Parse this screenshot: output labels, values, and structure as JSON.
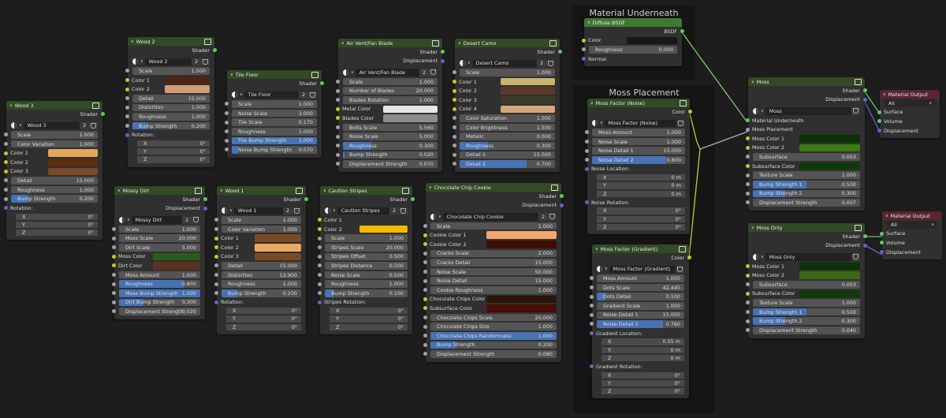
{
  "frames": [
    {
      "id": "f1",
      "title": "Material Underneath"
    },
    {
      "id": "f2",
      "title": "Moss Placement"
    }
  ],
  "colors": {
    "float": "#a1a1a1",
    "color": "#c7c729",
    "vector": "#6363c7",
    "shader": "#63c763"
  },
  "nodes": [
    {
      "id": "wood3",
      "title": "Wood 3",
      "outputs": [
        {
          "l": "Shader",
          "k": "shader"
        }
      ],
      "db": {
        "name": "Wood 3",
        "users": "2"
      },
      "rows": [
        {
          "t": "f",
          "l": "Scale",
          "v": "1.000"
        },
        {
          "t": "f",
          "l": "Color Variation",
          "v": "1.000"
        },
        {
          "t": "c",
          "l": "Color 1",
          "c": "#e3a65e"
        },
        {
          "t": "c",
          "l": "Color 2",
          "c": "#5a2e12"
        },
        {
          "t": "c",
          "l": "Color 3",
          "c": "#7c4a28"
        },
        {
          "t": "f",
          "l": "Detail",
          "v": "15.000"
        },
        {
          "t": "f",
          "l": "Roughness",
          "v": "1.000"
        },
        {
          "t": "f",
          "l": "Bump Strength",
          "v": "0.200",
          "p": 0.2
        },
        {
          "t": "s",
          "l": "Rotation:"
        },
        {
          "t": "v",
          "l": "X",
          "v": "0°"
        },
        {
          "t": "v",
          "l": "Y",
          "v": "0°"
        },
        {
          "t": "v",
          "l": "Z",
          "v": "0°"
        }
      ]
    },
    {
      "id": "wood2",
      "title": "Wood 2",
      "outputs": [
        {
          "l": "Shader",
          "k": "shader"
        }
      ],
      "db": {
        "name": "Wood 2",
        "users": "2"
      },
      "rows": [
        {
          "t": "f",
          "l": "Scale",
          "v": "1.000"
        },
        {
          "t": "c",
          "l": "Color 1",
          "c": "#4e2414"
        },
        {
          "t": "c",
          "l": "Color 2",
          "c": "#d39a78"
        },
        {
          "t": "f",
          "l": "Detail",
          "v": "15.000"
        },
        {
          "t": "f",
          "l": "Distortion",
          "v": "1.000"
        },
        {
          "t": "f",
          "l": "Roughness",
          "v": "1.000"
        },
        {
          "t": "f",
          "l": "Bump Strength",
          "v": "0.200",
          "p": 0.2
        },
        {
          "t": "s",
          "l": "Rotation:"
        },
        {
          "t": "v",
          "l": "X",
          "v": "0°"
        },
        {
          "t": "v",
          "l": "Y",
          "v": "0°"
        },
        {
          "t": "v",
          "l": "Z",
          "v": "0°"
        }
      ]
    },
    {
      "id": "tile",
      "title": "Tile Floor",
      "outputs": [
        {
          "l": "Shader",
          "k": "shader"
        }
      ],
      "db": {
        "name": "Tile Floor",
        "users": "2"
      },
      "rows": [
        {
          "t": "f",
          "l": "Scale",
          "v": "1.000"
        },
        {
          "t": "f",
          "l": "Noise Scale",
          "v": "3.000"
        },
        {
          "t": "f",
          "l": "Tile Scale",
          "v": "0.170"
        },
        {
          "t": "f",
          "l": "Roughness",
          "v": "1.000"
        },
        {
          "t": "f",
          "l": "Tile Bump Strength",
          "v": "1.000",
          "p": 1
        },
        {
          "t": "f",
          "l": "Noise Bump Strength",
          "v": "0.070",
          "p": 0.07
        }
      ]
    },
    {
      "id": "airvent",
      "title": "Air Vent/Fan Blade",
      "outputs": [
        {
          "l": "Shader",
          "k": "shader"
        },
        {
          "l": "Displacement",
          "k": "vector"
        }
      ],
      "db": {
        "name": "Air Vent/Fan Blade",
        "users": "2"
      },
      "rows": [
        {
          "t": "f",
          "l": "Scale",
          "v": "1.000"
        },
        {
          "t": "f",
          "l": "Number of Blades",
          "v": "20.000"
        },
        {
          "t": "f",
          "l": "Blades Rotation",
          "v": "1.000"
        },
        {
          "t": "c",
          "l": "Metal Color",
          "c": "#e6e6e6"
        },
        {
          "t": "c",
          "l": "Blades Color",
          "c": "#8c8c8c"
        },
        {
          "t": "f",
          "l": "Bolts Scale",
          "v": "5.560"
        },
        {
          "t": "f",
          "l": "Noise Scale",
          "v": "5.000"
        },
        {
          "t": "f",
          "l": "Roughness",
          "v": "0.300",
          "p": 0.3
        },
        {
          "t": "f",
          "l": "Bump Strength",
          "v": "0.020",
          "p": 0.02
        },
        {
          "t": "f",
          "l": "Displacement Strength",
          "v": "0.070"
        }
      ]
    },
    {
      "id": "camo",
      "title": "Desert Camo",
      "outputs": [
        {
          "l": "Shader",
          "k": "shader"
        }
      ],
      "db": {
        "name": "Desert Camo",
        "users": "2"
      },
      "rows": [
        {
          "t": "f",
          "l": "Scale",
          "v": "1.000"
        },
        {
          "t": "c",
          "l": "Color 1",
          "c": "#c9b46e"
        },
        {
          "t": "c",
          "l": "Color 2",
          "c": "#5a3a2c"
        },
        {
          "t": "c",
          "l": "Color 3",
          "c": "#3c3a28"
        },
        {
          "t": "c",
          "l": "Color 4",
          "c": "#d3a678"
        },
        {
          "t": "f",
          "l": "Color Saturation",
          "v": "1.000"
        },
        {
          "t": "f",
          "l": "Color Brightness",
          "v": "1.500"
        },
        {
          "t": "f",
          "l": "Metalic",
          "v": "0.000"
        },
        {
          "t": "f",
          "l": "Roughness",
          "v": "0.300",
          "p": 0.3
        },
        {
          "t": "f",
          "l": "Detail 1",
          "v": "15.000"
        },
        {
          "t": "f",
          "l": "Detail 2",
          "v": "0.700",
          "p": 0.7
        }
      ]
    },
    {
      "id": "mossydirt",
      "title": "Mossy Dirt",
      "outputs": [
        {
          "l": "Shader",
          "k": "shader"
        },
        {
          "l": "Displacement",
          "k": "vector"
        }
      ],
      "db": {
        "name": "Mossy Dirt",
        "users": "2"
      },
      "rows": [
        {
          "t": "f",
          "l": "Scale",
          "v": "1.000"
        },
        {
          "t": "f",
          "l": "Moss Scale",
          "v": "20.000"
        },
        {
          "t": "f",
          "l": "Dirt Scale",
          "v": "5.000"
        },
        {
          "t": "c",
          "l": "Moss Color",
          "c": "#2d5a1e"
        },
        {
          "t": "c",
          "l": "Dirt Color",
          "c": "#5a3222"
        },
        {
          "t": "f",
          "l": "Moss Amount",
          "v": "1.000"
        },
        {
          "t": "f",
          "l": "Roughness",
          "v": "0.800",
          "p": 0.8
        },
        {
          "t": "f",
          "l": "Moss Bump Strength",
          "v": "1.000",
          "p": 1
        },
        {
          "t": "f",
          "l": "Dirt Bump Strength",
          "v": "0.300",
          "p": 0.3
        },
        {
          "t": "f",
          "l": "Displacement Strength",
          "v": "0.020"
        }
      ]
    },
    {
      "id": "wood1",
      "title": "Wood 1",
      "outputs": [
        {
          "l": "Shader",
          "k": "shader"
        }
      ],
      "db": {
        "name": "Wood 1",
        "users": "2"
      },
      "rows": [
        {
          "t": "f",
          "l": "Scale",
          "v": "1.000"
        },
        {
          "t": "f",
          "l": "Color Variation",
          "v": "1.000"
        },
        {
          "t": "c",
          "l": "Color 1",
          "c": "#7a4a26"
        },
        {
          "t": "c",
          "l": "Color 2",
          "c": "#eca860"
        },
        {
          "t": "c",
          "l": "Color 3",
          "c": "#7a4a26"
        },
        {
          "t": "f",
          "l": "Detail",
          "v": "15.000"
        },
        {
          "t": "f",
          "l": "Distortion",
          "v": "12.900"
        },
        {
          "t": "f",
          "l": "Roughness",
          "v": "1.000"
        },
        {
          "t": "f",
          "l": "Bump Strength",
          "v": "0.200",
          "p": 0.2
        },
        {
          "t": "s",
          "l": "Rotation:"
        },
        {
          "t": "v",
          "l": "X",
          "v": "0°"
        },
        {
          "t": "v",
          "l": "Y",
          "v": "0°"
        },
        {
          "t": "v",
          "l": "Z",
          "v": "0°"
        }
      ]
    },
    {
      "id": "caution",
      "title": "Caution Stripes",
      "outputs": [
        {
          "l": "Shader",
          "k": "shader"
        }
      ],
      "db": {
        "name": "Caution Stripes",
        "users": "2"
      },
      "rows": [
        {
          "t": "i",
          "l": "Color 1",
          "k": "color"
        },
        {
          "t": "c",
          "l": "Color 2",
          "c": "#f5b800"
        },
        {
          "t": "f",
          "l": "Scale",
          "v": "1.000"
        },
        {
          "t": "f",
          "l": "Stripes Scale",
          "v": "20.000"
        },
        {
          "t": "f",
          "l": "Stripes Offset",
          "v": "0.500"
        },
        {
          "t": "f",
          "l": "Stripes Distance",
          "v": "0.500"
        },
        {
          "t": "f",
          "l": "Noise Scale",
          "v": "0.500"
        },
        {
          "t": "f",
          "l": "Roughness",
          "v": "1.000"
        },
        {
          "t": "f",
          "l": "Bump Strength",
          "v": "0.100",
          "p": 0.1
        },
        {
          "t": "s",
          "l": "Stripes Rotation:"
        },
        {
          "t": "v",
          "l": "X",
          "v": "0°"
        },
        {
          "t": "v",
          "l": "Y",
          "v": "0°"
        },
        {
          "t": "v",
          "l": "Z",
          "v": "0°"
        }
      ]
    },
    {
      "id": "cookie",
      "title": "Chocolate Chip Cookie",
      "outputs": [
        {
          "l": "Shader",
          "k": "shader"
        },
        {
          "l": "Displacement",
          "k": "vector"
        }
      ],
      "db": {
        "name": "Chocolate Chip Cookie",
        "users": "2"
      },
      "rows": [
        {
          "t": "f",
          "l": "Scale",
          "v": "1.000"
        },
        {
          "t": "c",
          "l": "Cookie Color 1",
          "c": "#f5a66e"
        },
        {
          "t": "c",
          "l": "Cookie Color 2",
          "c": "#3c0e04"
        },
        {
          "t": "f",
          "l": "Cracks Scale",
          "v": "2.000"
        },
        {
          "t": "f",
          "l": "Cracks Detail",
          "v": "15.000"
        },
        {
          "t": "f",
          "l": "Noise Scale",
          "v": "50.000"
        },
        {
          "t": "f",
          "l": "Noise Detail",
          "v": "15.000"
        },
        {
          "t": "f",
          "l": "Cookie Roughness",
          "v": "1.000"
        },
        {
          "t": "c",
          "l": "Chocolate Chips Color",
          "c": "#2e1406"
        },
        {
          "t": "c",
          "l": "Subsurface Color",
          "c": "#4a0e08"
        },
        {
          "t": "f",
          "l": "Chocolate Chips Scale",
          "v": "20.000"
        },
        {
          "t": "f",
          "l": "Chocolate Chips Size",
          "v": "1.000"
        },
        {
          "t": "f",
          "l": "Chocolate Chips Randomness",
          "v": "1.000",
          "p": 1
        },
        {
          "t": "f",
          "l": "Bump Strength",
          "v": "0.200",
          "p": 0.2
        },
        {
          "t": "f",
          "l": "Displacement Strength",
          "v": "0.080"
        }
      ]
    },
    {
      "id": "diffuse",
      "title": "Diffuse BSDF",
      "kind": "bsdf",
      "outputs": [
        {
          "l": "BSDF",
          "k": "shader"
        }
      ],
      "rows": [
        {
          "t": "c",
          "l": "Color",
          "c": "#181818"
        },
        {
          "t": "f",
          "l": "Roughness",
          "v": "0.000"
        },
        {
          "t": "i",
          "l": "Normal",
          "k": "vector"
        }
      ]
    },
    {
      "id": "noise",
      "title": "Moss Factor (Noise)",
      "outputs": [
        {
          "l": "Color",
          "k": "color"
        }
      ],
      "db": {
        "name": "Moss Factor (Noise)"
      },
      "rows": [
        {
          "t": "f",
          "l": "Moss Amount",
          "v": "1.000"
        },
        {
          "t": "f",
          "l": "Noise Scale",
          "v": "1.000"
        },
        {
          "t": "f",
          "l": "Noise Detail 1",
          "v": "15.000"
        },
        {
          "t": "f",
          "l": "Noise Detail 2",
          "v": "0.800",
          "p": 0.8
        },
        {
          "t": "s",
          "l": "Noise Location:"
        },
        {
          "t": "v",
          "l": "X",
          "v": "0 m"
        },
        {
          "t": "v",
          "l": "Y",
          "v": "0 m"
        },
        {
          "t": "v",
          "l": "Z",
          "v": "0 m"
        },
        {
          "t": "s",
          "l": "Noise Rotation:"
        },
        {
          "t": "v",
          "l": "X",
          "v": "0°"
        },
        {
          "t": "v",
          "l": "Y",
          "v": "0°"
        },
        {
          "t": "v",
          "l": "Z",
          "v": "0°"
        }
      ]
    },
    {
      "id": "gradient",
      "title": "Moss Factor (Gradient)",
      "outputs": [
        {
          "l": "Color",
          "k": "color"
        }
      ],
      "db": {
        "name": "Moss Factor (Gradient)"
      },
      "rows": [
        {
          "t": "f",
          "l": "Moss Amount",
          "v": "1.000"
        },
        {
          "t": "f",
          "l": "Dots Scale",
          "v": "42.440"
        },
        {
          "t": "f",
          "l": "Dots Detail",
          "v": "0.100",
          "p": 0.1
        },
        {
          "t": "f",
          "l": "Gradient Scale",
          "v": "1.000"
        },
        {
          "t": "f",
          "l": "Noise Detail 1",
          "v": "15.000"
        },
        {
          "t": "f",
          "l": "Noise Detail 2",
          "v": "0.760",
          "p": 0.76
        },
        {
          "t": "s",
          "l": "Gradient Location:"
        },
        {
          "t": "v",
          "l": "X",
          "v": "0.55 m"
        },
        {
          "t": "v",
          "l": "Y",
          "v": "0 m"
        },
        {
          "t": "v",
          "l": "Z",
          "v": "0 m"
        },
        {
          "t": "s",
          "l": "Gradient Rotation:"
        },
        {
          "t": "v",
          "l": "X",
          "v": "0°"
        },
        {
          "t": "v",
          "l": "Y",
          "v": "0°"
        },
        {
          "t": "v",
          "l": "Z",
          "v": "0°"
        }
      ]
    },
    {
      "id": "moss",
      "title": "Moss",
      "outputs": [
        {
          "l": "Shader",
          "k": "shader"
        },
        {
          "l": "Displacement",
          "k": "vector"
        }
      ],
      "db": {
        "name": "Moss"
      },
      "rows": [
        {
          "t": "i",
          "l": "Material Underneath",
          "k": "shader"
        },
        {
          "t": "i",
          "l": "Moss Placement",
          "k": "float"
        },
        {
          "t": "c",
          "l": "Moss Color 1",
          "c": "#0a3204"
        },
        {
          "t": "c",
          "l": "Moss Color 2",
          "c": "#3c7a14"
        },
        {
          "t": "f",
          "l": "Subsurface",
          "v": "0.003"
        },
        {
          "t": "c",
          "l": "Subsurface Color",
          "c": "#0e3a06"
        },
        {
          "t": "f",
          "l": "Texture Scale",
          "v": "1.000"
        },
        {
          "t": "f",
          "l": "Bump Strength 1",
          "v": "0.500",
          "p": 0.5
        },
        {
          "t": "f",
          "l": "Bump Strength 2",
          "v": "0.300",
          "p": 0.3
        },
        {
          "t": "f",
          "l": "Displacement Strength",
          "v": "0.007"
        }
      ]
    },
    {
      "id": "out1",
      "title": "Material Output",
      "kind": "out",
      "select": "All",
      "rows": [
        {
          "t": "i",
          "l": "Surface",
          "k": "shader"
        },
        {
          "t": "i",
          "l": "Volume",
          "k": "shader"
        },
        {
          "t": "i",
          "l": "Displacement",
          "k": "vector"
        }
      ]
    },
    {
      "id": "mossonly",
      "title": "Moss Only",
      "outputs": [
        {
          "l": "Shader",
          "k": "shader"
        },
        {
          "l": "Displacement",
          "k": "vector"
        }
      ],
      "db": {
        "name": "Moss Only"
      },
      "rows": [
        {
          "t": "c",
          "l": "Moss Color 1",
          "c": "#0a3204"
        },
        {
          "t": "c",
          "l": "Moss Color 2",
          "c": "#3c6a14"
        },
        {
          "t": "f",
          "l": "Subsurface",
          "v": "0.003"
        },
        {
          "t": "c",
          "l": "Subsurface Color",
          "c": "#0e3a06"
        },
        {
          "t": "f",
          "l": "Texture Scale",
          "v": "1.000"
        },
        {
          "t": "f",
          "l": "Bump Strength 1",
          "v": "0.500",
          "p": 0.5
        },
        {
          "t": "f",
          "l": "Bump Strength 2",
          "v": "0.300",
          "p": 0.3
        },
        {
          "t": "f",
          "l": "Displacement Strength",
          "v": "0.040"
        }
      ]
    },
    {
      "id": "out2",
      "title": "Material Output",
      "kind": "out",
      "select": "All",
      "rows": [
        {
          "t": "i",
          "l": "Surface",
          "k": "shader"
        },
        {
          "t": "i",
          "l": "Volume",
          "k": "shader"
        },
        {
          "t": "i",
          "l": "Displacement",
          "k": "vector"
        }
      ]
    }
  ]
}
